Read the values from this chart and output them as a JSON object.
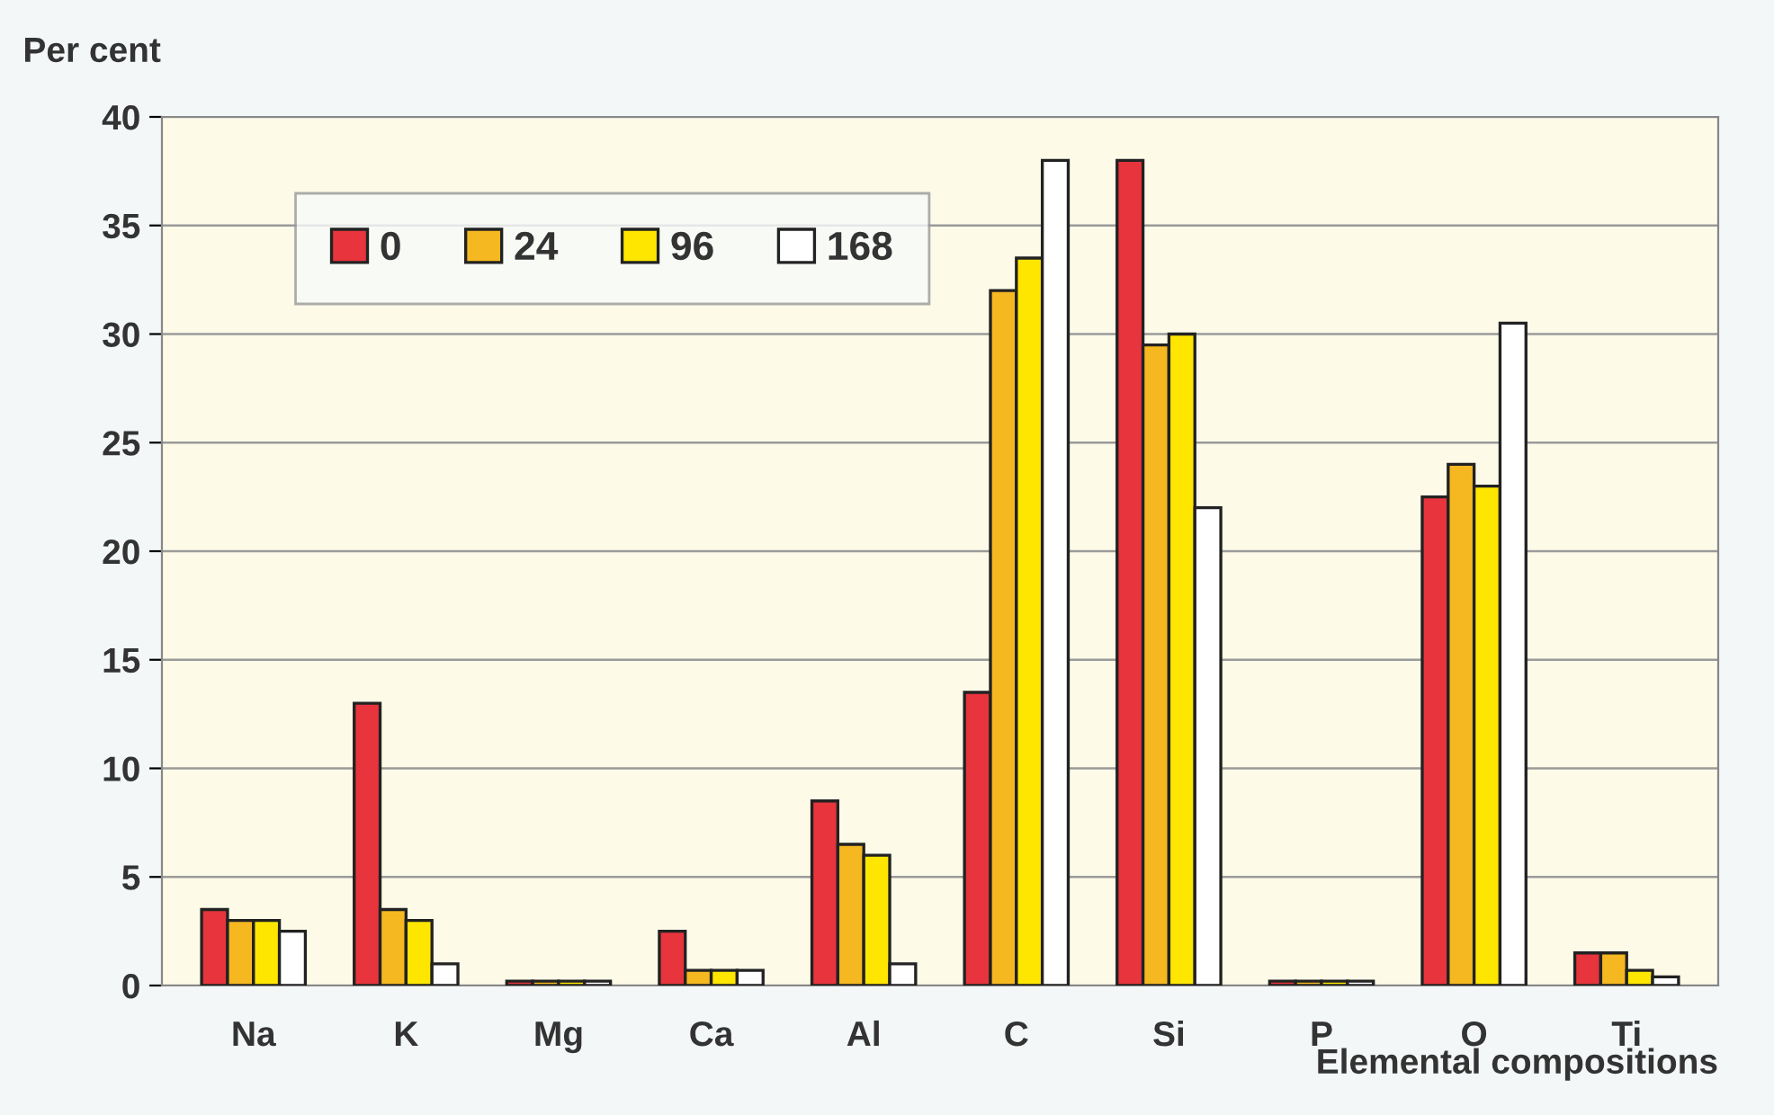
{
  "chart_data": {
    "type": "bar",
    "xlabel": "Elemental compositions",
    "ylabel": "Per cent",
    "categories": [
      "Na",
      "K",
      "Mg",
      "Ca",
      "Al",
      "C",
      "Si",
      "P",
      "O",
      "Ti"
    ],
    "series": [
      {
        "name": "0",
        "color": "#e8343c",
        "values": [
          3.5,
          13,
          0.2,
          2.5,
          8.5,
          13.5,
          38,
          0.2,
          22.5,
          1.5
        ]
      },
      {
        "name": "24",
        "color": "#f5b820",
        "values": [
          3,
          3.5,
          0.2,
          0.7,
          6.5,
          32,
          29.5,
          0.2,
          24,
          1.5
        ]
      },
      {
        "name": "96",
        "color": "#ffe600",
        "values": [
          3,
          3,
          0.2,
          0.7,
          6,
          33.5,
          30,
          0.2,
          23,
          0.7
        ]
      },
      {
        "name": "168",
        "color": "#ffffff",
        "values": [
          2.5,
          1,
          0.2,
          0.7,
          1,
          38,
          22,
          0.2,
          30.5,
          0.4
        ]
      }
    ],
    "ylim": [
      0,
      40
    ],
    "yticks": [
      0,
      5,
      10,
      15,
      20,
      25,
      30,
      35,
      40
    ],
    "grid": "y",
    "legend": "top left"
  }
}
